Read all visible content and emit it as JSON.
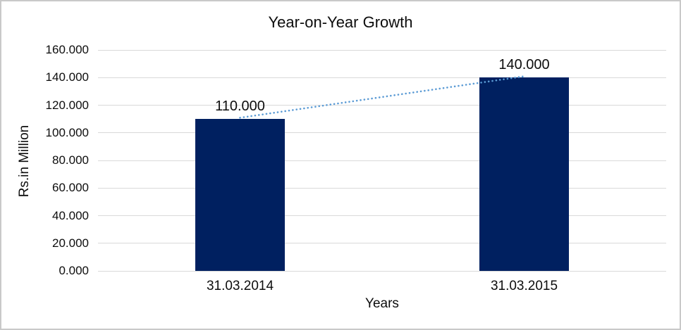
{
  "chart_data": {
    "type": "bar",
    "title": "Year-on-Year Growth",
    "categories": [
      "31.03.2014",
      "31.03.2015"
    ],
    "values": [
      110,
      140
    ],
    "value_labels": [
      "110.000",
      "140.000"
    ],
    "xlabel": "Years",
    "ylabel": "Rs.in Million",
    "ylim": [
      0,
      160
    ],
    "ytick_step": 20,
    "ytick_labels": [
      "0.000",
      "20.000",
      "40.000",
      "60.000",
      "80.000",
      "100.000",
      "120.000",
      "140.000",
      "160.000"
    ],
    "grid": true,
    "legend": "none",
    "colors": {
      "bar": "#002060",
      "trendline": "#5b9bd5",
      "gridline": "#d9d9d9",
      "text": "#0d0d0d",
      "chart_border": "#c9c9c9",
      "background": "#ffffff"
    },
    "trendline": {
      "style": "dotted",
      "from_value": 110,
      "to_value": 140
    }
  }
}
